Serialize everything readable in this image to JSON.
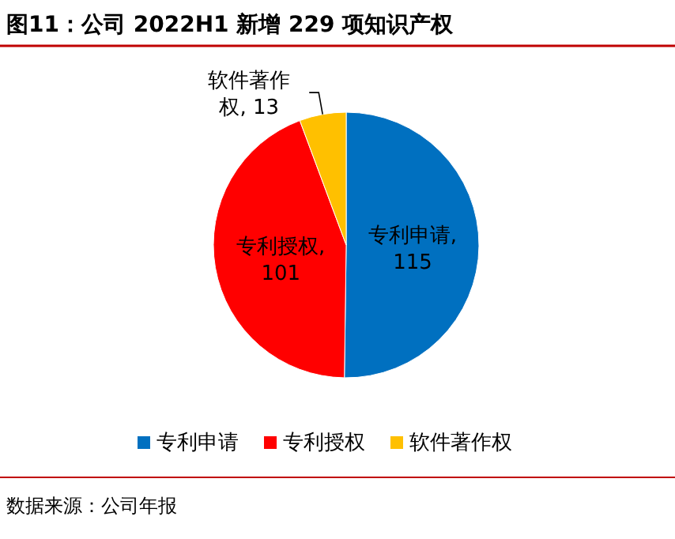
{
  "chart_data": {
    "type": "pie",
    "title": "图11：公司 2022H1 新增 229 项知识产权",
    "categories": [
      "专利申请",
      "专利授权",
      "软件著作权"
    ],
    "values": [
      115,
      101,
      13
    ],
    "value_labels": [
      "专利申请, 115",
      "专利授权, 101",
      "软件著作权, 13"
    ],
    "colors": [
      "#0070c0",
      "#ff0000",
      "#ffc000"
    ],
    "legend": "bottom",
    "annotations": [
      "数据来源：公司年报"
    ]
  }
}
